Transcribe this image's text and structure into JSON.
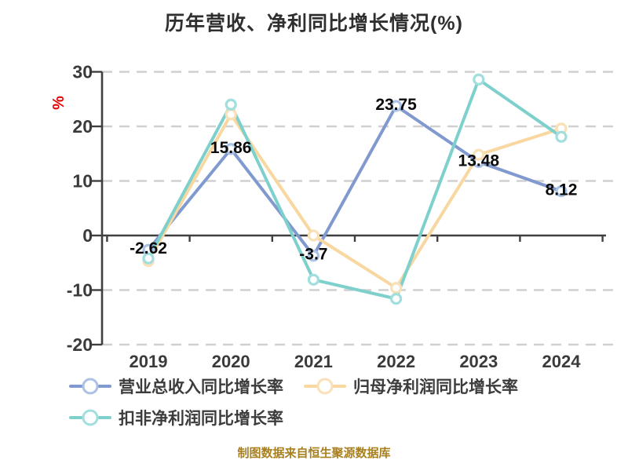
{
  "title": "历年营收、净利同比增长情况(%)",
  "caption": "制图数据来自恒生聚源数据库",
  "chart_data": {
    "type": "line",
    "title": "历年营收、净利同比增长情况(%)",
    "categories": [
      "2019",
      "2020",
      "2021",
      "2022",
      "2023",
      "2024"
    ],
    "xlabel": "",
    "ylabel": "%",
    "ylabel_color": "#e60000",
    "ylim": [
      -20,
      30
    ],
    "y_ticks": [
      30,
      20,
      10,
      0,
      -10,
      -20
    ],
    "grid": "dashed horizontal",
    "legend_position": "bottom-left",
    "axis_color": "#3f3f3f",
    "grid_color": "#d0d0d0",
    "tick_label_color": "#3a3a3a",
    "data_label_color": "#0a0a0a",
    "series": [
      {
        "name": "营业总收入同比增长率",
        "color": "#8099cf",
        "marker_ring": "#a9c2e6",
        "values": [
          -2.62,
          15.86,
          -3.7,
          23.75,
          13.48,
          8.12
        ],
        "labels": [
          "-2.62",
          "15.86",
          "-3.7",
          "23.75",
          "13.48",
          "8.12"
        ]
      },
      {
        "name": "归母净利润同比增长率",
        "color": "#f8d7a0",
        "marker_ring": "#f9e0b6",
        "values": [
          -4.7,
          22.2,
          0,
          -9.6,
          14.8,
          19.6
        ],
        "labels": []
      },
      {
        "name": "扣非净利润同比增长率",
        "color": "#7ed0cd",
        "marker_ring": "#a2dedd",
        "values": [
          -4.2,
          24.0,
          -8.1,
          -11.6,
          28.6,
          18.1
        ],
        "labels": []
      }
    ]
  }
}
